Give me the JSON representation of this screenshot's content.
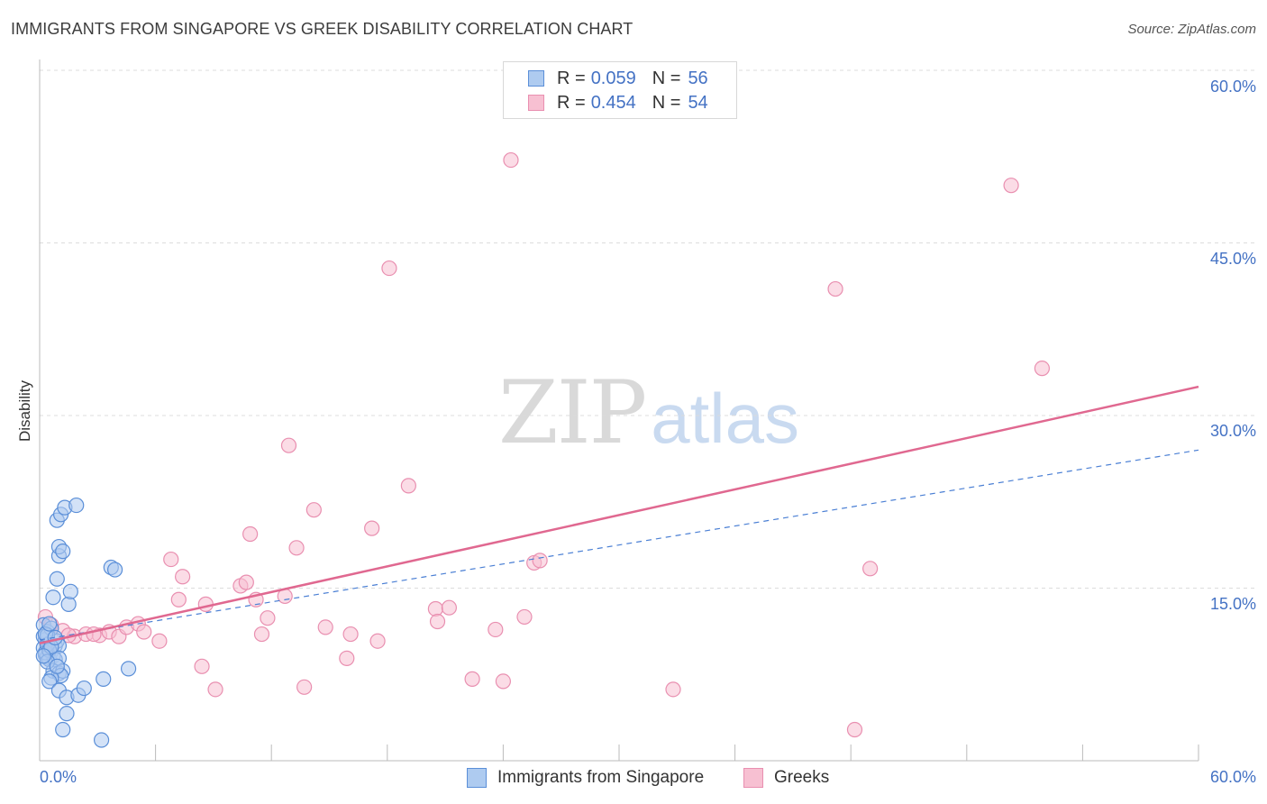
{
  "title": "IMMIGRANTS FROM SINGAPORE VS GREEK DISABILITY CORRELATION CHART",
  "source": "Source: ZipAtlas.com",
  "watermark": {
    "zip": "ZIP",
    "atlas": "atlas"
  },
  "legend": {
    "singapore": {
      "r_label": "R =",
      "r_value": "0.059",
      "n_label": "N =",
      "n_value": "56"
    },
    "greeks": {
      "r_label": "R =",
      "r_value": "0.454",
      "n_label": "N =",
      "n_value": "54"
    }
  },
  "colors": {
    "singapore_fill": "#aecbf0",
    "singapore_stroke": "#5b8fd8",
    "singapore_line": "#4a7fd4",
    "greeks_fill": "#f7c0d2",
    "greeks_stroke": "#e98fb0",
    "greeks_line": "#e06890",
    "value_text": "#4472c4",
    "grid": "#dcdcdc"
  },
  "chart_data": {
    "type": "scatter",
    "title": "IMMIGRANTS FROM SINGAPORE VS GREEK DISABILITY CORRELATION CHART",
    "xlabel": "",
    "ylabel": "Disability",
    "xlim": [
      0,
      60
    ],
    "ylim": [
      0,
      60
    ],
    "x_tick_labels": [
      "0.0%",
      "60.0%"
    ],
    "y_ticks": [
      15,
      30,
      45,
      60
    ],
    "y_tick_labels": [
      "15.0%",
      "30.0%",
      "45.0%",
      "60.0%"
    ],
    "grid": true,
    "series": [
      {
        "name": "Immigrants from Singapore",
        "R": 0.059,
        "N": 56,
        "trend": {
          "x0": 0,
          "y0": 10.5,
          "x1": 60,
          "y1": 27.0,
          "style": "dashed"
        },
        "points": [
          [
            0.2,
            11.8
          ],
          [
            0.4,
            11.2
          ],
          [
            0.3,
            10.5
          ],
          [
            0.5,
            10.2
          ],
          [
            0.2,
            9.8
          ],
          [
            0.6,
            9.5
          ],
          [
            0.3,
            9.2
          ],
          [
            0.4,
            9.0
          ],
          [
            0.5,
            8.8
          ],
          [
            0.7,
            9.1
          ],
          [
            0.2,
            10.8
          ],
          [
            0.8,
            10.0
          ],
          [
            0.9,
            10.4
          ],
          [
            0.6,
            11.5
          ],
          [
            1.0,
            10.0
          ],
          [
            0.3,
            9.4
          ],
          [
            0.4,
            10.1
          ],
          [
            0.5,
            9.6
          ],
          [
            0.8,
            8.8
          ],
          [
            1.0,
            8.9
          ],
          [
            0.7,
            7.8
          ],
          [
            1.0,
            7.6
          ],
          [
            1.2,
            7.8
          ],
          [
            1.1,
            7.4
          ],
          [
            0.6,
            7.2
          ],
          [
            0.5,
            6.9
          ],
          [
            1.0,
            6.1
          ],
          [
            1.4,
            5.5
          ],
          [
            2.0,
            5.7
          ],
          [
            2.3,
            6.3
          ],
          [
            3.3,
            7.1
          ],
          [
            4.6,
            8.0
          ],
          [
            1.4,
            4.1
          ],
          [
            1.2,
            2.7
          ],
          [
            3.2,
            1.8
          ],
          [
            0.7,
            14.2
          ],
          [
            1.5,
            13.6
          ],
          [
            1.6,
            14.7
          ],
          [
            0.9,
            15.8
          ],
          [
            1.0,
            17.8
          ],
          [
            1.0,
            18.6
          ],
          [
            1.2,
            18.2
          ],
          [
            0.9,
            20.9
          ],
          [
            1.1,
            21.4
          ],
          [
            1.3,
            22.0
          ],
          [
            1.9,
            22.2
          ],
          [
            3.7,
            16.8
          ],
          [
            3.9,
            16.6
          ],
          [
            0.4,
            8.6
          ],
          [
            0.9,
            8.2
          ],
          [
            0.4,
            10.9
          ],
          [
            0.6,
            9.9
          ],
          [
            0.3,
            11.0
          ],
          [
            0.5,
            11.9
          ],
          [
            0.8,
            10.7
          ],
          [
            0.2,
            9.1
          ]
        ]
      },
      {
        "name": "Greeks",
        "R": 0.454,
        "N": 54,
        "trend": {
          "x0": 0,
          "y0": 10.2,
          "x1": 60,
          "y1": 32.5,
          "style": "solid"
        },
        "points": [
          [
            0.3,
            12.5
          ],
          [
            0.6,
            11.8
          ],
          [
            1.2,
            11.3
          ],
          [
            1.8,
            10.8
          ],
          [
            2.4,
            11.0
          ],
          [
            3.1,
            10.9
          ],
          [
            3.6,
            11.2
          ],
          [
            4.1,
            10.8
          ],
          [
            4.5,
            11.6
          ],
          [
            5.1,
            11.9
          ],
          [
            5.4,
            11.2
          ],
          [
            6.2,
            10.4
          ],
          [
            6.8,
            17.5
          ],
          [
            7.4,
            16.0
          ],
          [
            7.2,
            14.0
          ],
          [
            8.4,
            8.2
          ],
          [
            8.6,
            13.6
          ],
          [
            9.1,
            6.2
          ],
          [
            10.4,
            15.2
          ],
          [
            10.7,
            15.5
          ],
          [
            10.9,
            19.7
          ],
          [
            11.2,
            14.0
          ],
          [
            11.5,
            11.0
          ],
          [
            11.8,
            12.4
          ],
          [
            12.7,
            14.3
          ],
          [
            12.9,
            27.4
          ],
          [
            13.3,
            18.5
          ],
          [
            13.7,
            6.4
          ],
          [
            14.2,
            21.8
          ],
          [
            14.8,
            11.6
          ],
          [
            15.9,
            8.9
          ],
          [
            16.1,
            11.0
          ],
          [
            17.2,
            20.2
          ],
          [
            17.5,
            10.4
          ],
          [
            18.1,
            42.8
          ],
          [
            19.1,
            23.9
          ],
          [
            20.5,
            13.2
          ],
          [
            20.6,
            12.1
          ],
          [
            21.2,
            13.3
          ],
          [
            22.4,
            7.1
          ],
          [
            23.6,
            11.4
          ],
          [
            24.0,
            6.9
          ],
          [
            24.4,
            52.2
          ],
          [
            25.1,
            12.5
          ],
          [
            25.6,
            17.2
          ],
          [
            25.9,
            17.4
          ],
          [
            32.8,
            6.2
          ],
          [
            41.2,
            41.0
          ],
          [
            42.2,
            2.7
          ],
          [
            43.0,
            16.7
          ],
          [
            50.3,
            50.0
          ],
          [
            51.9,
            34.1
          ],
          [
            1.5,
            10.9
          ],
          [
            2.8,
            11.0
          ]
        ]
      }
    ]
  },
  "bottom_legend": {
    "singapore_label": "Immigrants from Singapore",
    "greeks_label": "Greeks"
  }
}
